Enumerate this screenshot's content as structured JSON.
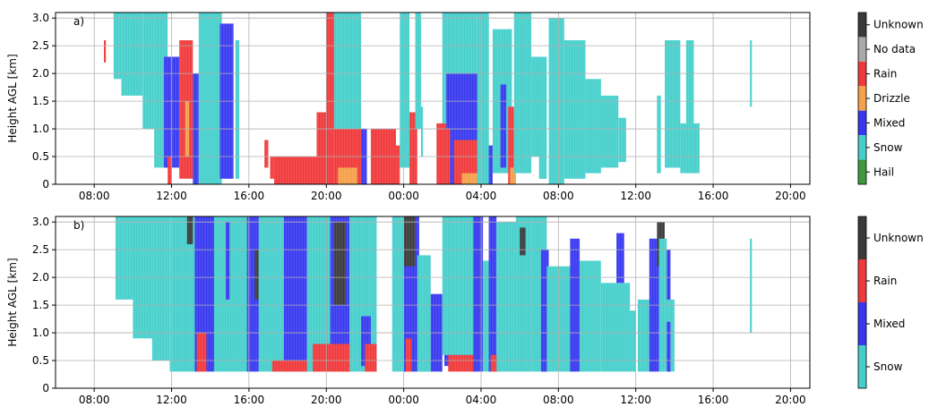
{
  "chart_data": [
    {
      "type": "heatmap",
      "panel_label": "a)",
      "ylabel": "Height AGL [km]",
      "xlim": [
        "06:00",
        "21:00 (+1 day)"
      ],
      "ylim": [
        0,
        3.1
      ],
      "x_ticks": [
        "08:00",
        "12:00",
        "16:00",
        "20:00",
        "00:00",
        "04:00",
        "08:00",
        "12:00",
        "16:00",
        "20:00"
      ],
      "y_ticks": [
        "0",
        "0.5",
        "1.0",
        "1.5",
        "2.0",
        "2.5",
        "3.0"
      ],
      "grid": true,
      "colorbar": [
        {
          "label": "Unknown",
          "color": "#3a3a3a"
        },
        {
          "label": "No data",
          "color": "#a9a9a9"
        },
        {
          "label": "Rain",
          "color": "#f0393a"
        },
        {
          "label": "Drizzle",
          "color": "#f5a04a"
        },
        {
          "label": "Mixed",
          "color": "#3838f0"
        },
        {
          "label": "Snow",
          "color": "#45cfcb"
        },
        {
          "label": "Hail",
          "color": "#3d9a3d"
        }
      ],
      "regions": [
        {
          "x0": 2.5,
          "x1": 2.6,
          "y0": 2.2,
          "y1": 2.6,
          "cls": "Rain"
        },
        {
          "x0": 3.0,
          "x1": 3.4,
          "y0": 1.9,
          "y1": 3.1,
          "cls": "Snow"
        },
        {
          "x0": 3.4,
          "x1": 4.5,
          "y0": 1.6,
          "y1": 3.1,
          "cls": "Snow"
        },
        {
          "x0": 4.5,
          "x1": 5.1,
          "y0": 1.0,
          "y1": 3.1,
          "cls": "Snow"
        },
        {
          "x0": 5.1,
          "x1": 5.8,
          "y0": 0.3,
          "y1": 3.1,
          "cls": "Snow"
        },
        {
          "x0": 5.6,
          "x1": 6.4,
          "y0": 0.3,
          "y1": 2.3,
          "cls": "Mixed"
        },
        {
          "x0": 5.8,
          "x1": 6.0,
          "y0": 0.0,
          "y1": 0.5,
          "cls": "Rain"
        },
        {
          "x0": 6.4,
          "x1": 7.1,
          "y0": 0.1,
          "y1": 2.6,
          "cls": "Rain"
        },
        {
          "x0": 6.7,
          "x1": 6.9,
          "y0": 0.5,
          "y1": 1.5,
          "cls": "Drizzle"
        },
        {
          "x0": 7.1,
          "x1": 7.4,
          "y0": 0.0,
          "y1": 2.0,
          "cls": "Mixed"
        },
        {
          "x0": 7.4,
          "x1": 8.6,
          "y0": 0.0,
          "y1": 3.1,
          "cls": "Snow"
        },
        {
          "x0": 8.5,
          "x1": 9.2,
          "y0": 0.1,
          "y1": 2.9,
          "cls": "Mixed"
        },
        {
          "x0": 9.3,
          "x1": 9.5,
          "y0": 0.1,
          "y1": 2.6,
          "cls": "Snow"
        },
        {
          "x0": 10.8,
          "x1": 11.0,
          "y0": 0.3,
          "y1": 0.8,
          "cls": "Rain"
        },
        {
          "x0": 11.1,
          "x1": 11.3,
          "y0": 0.1,
          "y1": 0.5,
          "cls": "Rain"
        },
        {
          "x0": 11.3,
          "x1": 13.5,
          "y0": 0.0,
          "y1": 0.5,
          "cls": "Rain"
        },
        {
          "x0": 13.5,
          "x1": 14.0,
          "y0": 0.0,
          "y1": 1.3,
          "cls": "Rain"
        },
        {
          "x0": 14.0,
          "x1": 14.4,
          "y0": 0.0,
          "y1": 3.1,
          "cls": "Rain"
        },
        {
          "x0": 14.4,
          "x1": 15.8,
          "y0": 1.0,
          "y1": 3.1,
          "cls": "Snow"
        },
        {
          "x0": 14.4,
          "x1": 15.8,
          "y0": 0.0,
          "y1": 1.0,
          "cls": "Rain"
        },
        {
          "x0": 14.6,
          "x1": 15.6,
          "y0": 0.0,
          "y1": 0.3,
          "cls": "Drizzle"
        },
        {
          "x0": 15.8,
          "x1": 16.1,
          "y0": 0.0,
          "y1": 1.0,
          "cls": "Mixed"
        },
        {
          "x0": 16.3,
          "x1": 17.6,
          "y0": 0.0,
          "y1": 1.0,
          "cls": "Rain"
        },
        {
          "x0": 17.6,
          "x1": 17.8,
          "y0": 0.0,
          "y1": 0.7,
          "cls": "Rain"
        },
        {
          "x0": 17.8,
          "x1": 18.3,
          "y0": 0.3,
          "y1": 3.1,
          "cls": "Snow"
        },
        {
          "x0": 18.3,
          "x1": 18.7,
          "y0": 0.0,
          "y1": 1.3,
          "cls": "Rain"
        },
        {
          "x0": 18.6,
          "x1": 18.9,
          "y0": 1.0,
          "y1": 3.1,
          "cls": "Snow"
        },
        {
          "x0": 18.9,
          "x1": 19.0,
          "y0": 0.5,
          "y1": 1.4,
          "cls": "Snow"
        },
        {
          "x0": 19.7,
          "x1": 20.4,
          "y0": 0.0,
          "y1": 1.1,
          "cls": "Rain"
        },
        {
          "x0": 20.0,
          "x1": 21.8,
          "y0": 1.1,
          "y1": 3.1,
          "cls": "Snow"
        },
        {
          "x0": 20.2,
          "x1": 22.0,
          "y0": 1.0,
          "y1": 2.0,
          "cls": "Mixed"
        },
        {
          "x0": 20.4,
          "x1": 21.9,
          "y0": 0.0,
          "y1": 1.0,
          "cls": "Mixed"
        },
        {
          "x0": 20.6,
          "x1": 22.1,
          "y0": 0.0,
          "y1": 0.8,
          "cls": "Rain"
        },
        {
          "x0": 21.0,
          "x1": 21.9,
          "y0": 0.0,
          "y1": 0.2,
          "cls": "Drizzle"
        },
        {
          "x0": 21.8,
          "x1": 22.4,
          "y0": 0.0,
          "y1": 3.1,
          "cls": "Snow"
        },
        {
          "x0": 22.4,
          "x1": 22.6,
          "y0": 0.0,
          "y1": 0.7,
          "cls": "Mixed"
        },
        {
          "x0": 22.6,
          "x1": 23.6,
          "y0": 0.2,
          "y1": 2.8,
          "cls": "Snow"
        },
        {
          "x0": 23.0,
          "x1": 23.3,
          "y0": 0.3,
          "y1": 1.8,
          "cls": "Mixed"
        },
        {
          "x0": 23.4,
          "x1": 23.7,
          "y0": 0.0,
          "y1": 1.4,
          "cls": "Rain"
        },
        {
          "x0": 23.5,
          "x1": 23.8,
          "y0": 0.0,
          "y1": 0.3,
          "cls": "Drizzle"
        },
        {
          "x0": 23.7,
          "x1": 24.6,
          "y0": 0.2,
          "y1": 3.1,
          "cls": "Snow"
        },
        {
          "x0": 24.6,
          "x1": 25.4,
          "y0": 0.5,
          "y1": 2.3,
          "cls": "Snow"
        },
        {
          "x0": 25.0,
          "x1": 25.4,
          "y0": 0.1,
          "y1": 0.8,
          "cls": "Snow"
        },
        {
          "x0": 25.5,
          "x1": 26.3,
          "y0": 0.0,
          "y1": 3.0,
          "cls": "Snow"
        },
        {
          "x0": 26.3,
          "x1": 27.4,
          "y0": 0.1,
          "y1": 2.6,
          "cls": "Snow"
        },
        {
          "x0": 27.4,
          "x1": 28.2,
          "y0": 0.2,
          "y1": 1.9,
          "cls": "Snow"
        },
        {
          "x0": 28.0,
          "x1": 29.1,
          "y0": 0.3,
          "y1": 1.6,
          "cls": "Snow"
        },
        {
          "x0": 29.1,
          "x1": 29.5,
          "y0": 0.4,
          "y1": 1.2,
          "cls": "Snow"
        },
        {
          "x0": 31.1,
          "x1": 31.3,
          "y0": 0.2,
          "y1": 1.6,
          "cls": "Snow"
        },
        {
          "x0": 31.5,
          "x1": 32.3,
          "y0": 0.3,
          "y1": 2.6,
          "cls": "Snow"
        },
        {
          "x0": 32.3,
          "x1": 33.3,
          "y0": 0.2,
          "y1": 1.1,
          "cls": "Snow"
        },
        {
          "x0": 32.6,
          "x1": 33.0,
          "y0": 1.1,
          "y1": 2.6,
          "cls": "Snow"
        },
        {
          "x0": 35.9,
          "x1": 36.0,
          "y0": 1.4,
          "y1": 2.6,
          "cls": "Snow"
        }
      ]
    },
    {
      "type": "heatmap",
      "panel_label": "b)",
      "ylabel": "Height AGL [km]",
      "xlim": [
        "06:00",
        "21:00 (+1 day)"
      ],
      "ylim": [
        0,
        3.1
      ],
      "x_ticks": [
        "08:00",
        "12:00",
        "16:00",
        "20:00",
        "00:00",
        "04:00",
        "08:00",
        "12:00",
        "16:00",
        "20:00"
      ],
      "y_ticks": [
        "0",
        "0.5",
        "1.0",
        "1.5",
        "2.0",
        "2.5",
        "3.0"
      ],
      "grid": true,
      "colorbar": [
        {
          "label": "Unknown",
          "color": "#3a3a3a"
        },
        {
          "label": "Rain",
          "color": "#f0393a"
        },
        {
          "label": "Mixed",
          "color": "#3838f0"
        },
        {
          "label": "Snow",
          "color": "#45cfcb"
        }
      ],
      "regions": [
        {
          "x0": 3.1,
          "x1": 4.2,
          "y0": 1.6,
          "y1": 3.1,
          "cls": "Snow"
        },
        {
          "x0": 4.0,
          "x1": 5.0,
          "y0": 0.9,
          "y1": 3.1,
          "cls": "Snow"
        },
        {
          "x0": 5.0,
          "x1": 5.9,
          "y0": 0.5,
          "y1": 3.1,
          "cls": "Snow"
        },
        {
          "x0": 5.9,
          "x1": 7.3,
          "y0": 0.3,
          "y1": 3.1,
          "cls": "Snow"
        },
        {
          "x0": 6.8,
          "x1": 7.1,
          "y0": 2.6,
          "y1": 3.1,
          "cls": "Unknown"
        },
        {
          "x0": 7.2,
          "x1": 8.2,
          "y0": 0.3,
          "y1": 3.1,
          "cls": "Mixed"
        },
        {
          "x0": 7.3,
          "x1": 7.8,
          "y0": 0.3,
          "y1": 1.0,
          "cls": "Rain"
        },
        {
          "x0": 8.2,
          "x1": 10.4,
          "y0": 0.3,
          "y1": 3.1,
          "cls": "Snow"
        },
        {
          "x0": 8.8,
          "x1": 9.0,
          "y0": 1.6,
          "y1": 3.0,
          "cls": "Mixed"
        },
        {
          "x0": 9.9,
          "x1": 10.6,
          "y0": 0.3,
          "y1": 3.1,
          "cls": "Mixed"
        },
        {
          "x0": 10.3,
          "x1": 10.5,
          "y0": 1.6,
          "y1": 2.5,
          "cls": "Unknown"
        },
        {
          "x0": 10.5,
          "x1": 11.8,
          "y0": 0.3,
          "y1": 3.1,
          "cls": "Snow"
        },
        {
          "x0": 11.8,
          "x1": 13.0,
          "y0": 0.3,
          "y1": 3.1,
          "cls": "Mixed"
        },
        {
          "x0": 11.2,
          "x1": 13.3,
          "y0": 0.3,
          "y1": 0.5,
          "cls": "Rain"
        },
        {
          "x0": 13.0,
          "x1": 14.4,
          "y0": 0.3,
          "y1": 3.1,
          "cls": "Snow"
        },
        {
          "x0": 13.3,
          "x1": 14.0,
          "y0": 0.3,
          "y1": 0.8,
          "cls": "Rain"
        },
        {
          "x0": 14.2,
          "x1": 15.2,
          "y0": 0.3,
          "y1": 3.1,
          "cls": "Mixed"
        },
        {
          "x0": 14.4,
          "x1": 15.0,
          "y0": 1.5,
          "y1": 3.0,
          "cls": "Unknown"
        },
        {
          "x0": 14.0,
          "x1": 15.3,
          "y0": 0.3,
          "y1": 0.8,
          "cls": "Rain"
        },
        {
          "x0": 15.2,
          "x1": 16.6,
          "y0": 0.3,
          "y1": 3.1,
          "cls": "Snow"
        },
        {
          "x0": 15.8,
          "x1": 16.3,
          "y0": 0.4,
          "y1": 1.3,
          "cls": "Mixed"
        },
        {
          "x0": 16.0,
          "x1": 16.6,
          "y0": 0.3,
          "y1": 0.8,
          "cls": "Rain"
        },
        {
          "x0": 17.4,
          "x1": 18.5,
          "y0": 0.3,
          "y1": 3.1,
          "cls": "Snow"
        },
        {
          "x0": 18.0,
          "x1": 18.8,
          "y0": 0.3,
          "y1": 3.1,
          "cls": "Mixed"
        },
        {
          "x0": 18.0,
          "x1": 18.6,
          "y0": 2.2,
          "y1": 3.1,
          "cls": "Unknown"
        },
        {
          "x0": 18.1,
          "x1": 18.4,
          "y0": 0.3,
          "y1": 0.9,
          "cls": "Rain"
        },
        {
          "x0": 18.7,
          "x1": 19.4,
          "y0": 0.3,
          "y1": 2.4,
          "cls": "Snow"
        },
        {
          "x0": 19.4,
          "x1": 20.0,
          "y0": 0.3,
          "y1": 1.7,
          "cls": "Mixed"
        },
        {
          "x0": 20.0,
          "x1": 21.8,
          "y0": 0.6,
          "y1": 3.1,
          "cls": "Snow"
        },
        {
          "x0": 20.1,
          "x1": 21.7,
          "y0": 0.4,
          "y1": 0.6,
          "cls": "Mixed"
        },
        {
          "x0": 20.3,
          "x1": 21.7,
          "y0": 0.3,
          "y1": 0.6,
          "cls": "Rain"
        },
        {
          "x0": 21.6,
          "x1": 22.1,
          "y0": 0.3,
          "y1": 3.1,
          "cls": "Mixed"
        },
        {
          "x0": 22.1,
          "x1": 22.5,
          "y0": 0.3,
          "y1": 2.3,
          "cls": "Snow"
        },
        {
          "x0": 22.4,
          "x1": 22.8,
          "y0": 0.3,
          "y1": 3.1,
          "cls": "Mixed"
        },
        {
          "x0": 22.5,
          "x1": 23.0,
          "y0": 0.3,
          "y1": 0.6,
          "cls": "Rain"
        },
        {
          "x0": 22.8,
          "x1": 23.9,
          "y0": 0.3,
          "y1": 3.0,
          "cls": "Snow"
        },
        {
          "x0": 23.8,
          "x1": 24.6,
          "y0": 0.3,
          "y1": 3.1,
          "cls": "Snow"
        },
        {
          "x0": 24.0,
          "x1": 24.3,
          "y0": 2.4,
          "y1": 2.9,
          "cls": "Unknown"
        },
        {
          "x0": 24.6,
          "x1": 25.4,
          "y0": 0.3,
          "y1": 3.1,
          "cls": "Snow"
        },
        {
          "x0": 25.1,
          "x1": 25.5,
          "y0": 0.3,
          "y1": 2.5,
          "cls": "Mixed"
        },
        {
          "x0": 25.4,
          "x1": 26.9,
          "y0": 0.3,
          "y1": 2.2,
          "cls": "Snow"
        },
        {
          "x0": 26.6,
          "x1": 27.1,
          "y0": 0.3,
          "y1": 2.7,
          "cls": "Mixed"
        },
        {
          "x0": 27.1,
          "x1": 28.2,
          "y0": 0.3,
          "y1": 2.3,
          "cls": "Snow"
        },
        {
          "x0": 28.2,
          "x1": 29.7,
          "y0": 0.3,
          "y1": 1.9,
          "cls": "Snow"
        },
        {
          "x0": 29.0,
          "x1": 29.4,
          "y0": 1.9,
          "y1": 2.8,
          "cls": "Mixed"
        },
        {
          "x0": 29.6,
          "x1": 30.0,
          "y0": 0.3,
          "y1": 1.4,
          "cls": "Snow"
        },
        {
          "x0": 30.1,
          "x1": 30.7,
          "y0": 0.3,
          "y1": 1.6,
          "cls": "Snow"
        },
        {
          "x0": 30.7,
          "x1": 31.2,
          "y0": 0.3,
          "y1": 2.7,
          "cls": "Mixed"
        },
        {
          "x0": 31.1,
          "x1": 31.5,
          "y0": 2.2,
          "y1": 3.0,
          "cls": "Unknown"
        },
        {
          "x0": 31.2,
          "x1": 31.6,
          "y0": 0.3,
          "y1": 2.7,
          "cls": "Snow"
        },
        {
          "x0": 31.6,
          "x1": 31.8,
          "y0": 0.3,
          "y1": 2.5,
          "cls": "Mixed"
        },
        {
          "x0": 31.8,
          "x1": 32.0,
          "y0": 0.3,
          "y1": 1.2,
          "cls": "Snow"
        },
        {
          "x0": 31.5,
          "x1": 32.0,
          "y0": 1.2,
          "y1": 1.6,
          "cls": "Snow"
        },
        {
          "x0": 35.9,
          "x1": 36.0,
          "y0": 1.0,
          "y1": 2.7,
          "cls": "Snow"
        }
      ]
    }
  ]
}
